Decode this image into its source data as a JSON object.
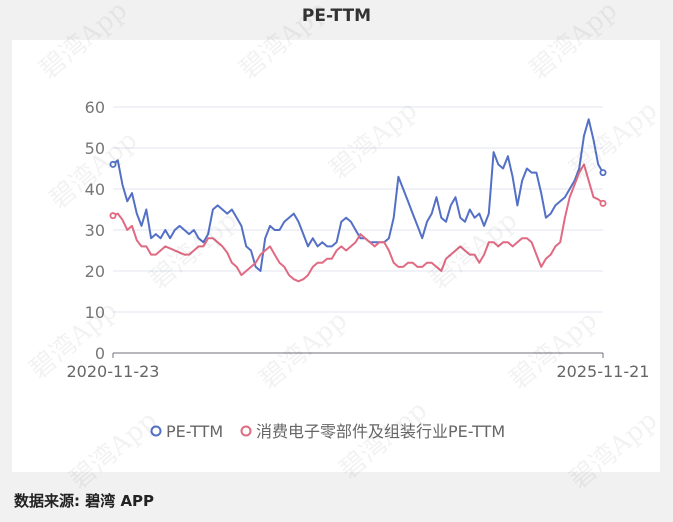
{
  "title": "PE-TTM",
  "source_note": "数据来源: 碧湾 APP",
  "watermark_text": "碧湾App",
  "chart_data": {
    "type": "line",
    "title": "PE-TTM",
    "x_start_label": "2020-11-23",
    "x_end_label": "2025-11-21",
    "ylim": [
      0,
      60
    ],
    "yticks": [
      0,
      10,
      20,
      30,
      40,
      50,
      60
    ],
    "grid": true,
    "legend_position": "bottom",
    "series": [
      {
        "name": "PE-TTM",
        "color": "#5470c6",
        "values": [
          46,
          47,
          41,
          37,
          39,
          34,
          31,
          35,
          28,
          29,
          28,
          30,
          28,
          30,
          31,
          30,
          29,
          30,
          28,
          27,
          29,
          35,
          36,
          35,
          34,
          35,
          33,
          31,
          26,
          25,
          21,
          20,
          28,
          31,
          30,
          30,
          32,
          33,
          34,
          32,
          29,
          26,
          28,
          26,
          27,
          26,
          26,
          27,
          32,
          33,
          32,
          30,
          28,
          28,
          27,
          27,
          27,
          27,
          28,
          33,
          43,
          40,
          37,
          34,
          31,
          28,
          32,
          34,
          38,
          33,
          32,
          36,
          38,
          33,
          32,
          35,
          33,
          34,
          31,
          34,
          49,
          46,
          45,
          48,
          43,
          36,
          42,
          45,
          44,
          44,
          39,
          33,
          34,
          36,
          37,
          38,
          40,
          42,
          45,
          53,
          57,
          52,
          46,
          44
        ]
      },
      {
        "name": "消费电子零部件及组装行业PE-TTM",
        "color": "#e06a82",
        "values": [
          33.5,
          34,
          32.5,
          30,
          31,
          27.5,
          26,
          26,
          24,
          24,
          25,
          26,
          25.5,
          25,
          24.5,
          24,
          24,
          25,
          26,
          26,
          28,
          28,
          27,
          26,
          24.5,
          22,
          21,
          19,
          20,
          21,
          22,
          24,
          25,
          26,
          24,
          22,
          21,
          19,
          18,
          17.5,
          18,
          19,
          21,
          22,
          22,
          23,
          23,
          25,
          26,
          25,
          26,
          27,
          29,
          28,
          27,
          26,
          27,
          27,
          25,
          22,
          21,
          21,
          22,
          22,
          21,
          21,
          22,
          22,
          21,
          20,
          23,
          24,
          25,
          26,
          25,
          24,
          24,
          22,
          24,
          27,
          27,
          26,
          27,
          27,
          26,
          27,
          28,
          28,
          27,
          24,
          21,
          23,
          24,
          26,
          27,
          33,
          38,
          41,
          44,
          46,
          42,
          38,
          37.5,
          36.5
        ]
      }
    ]
  }
}
